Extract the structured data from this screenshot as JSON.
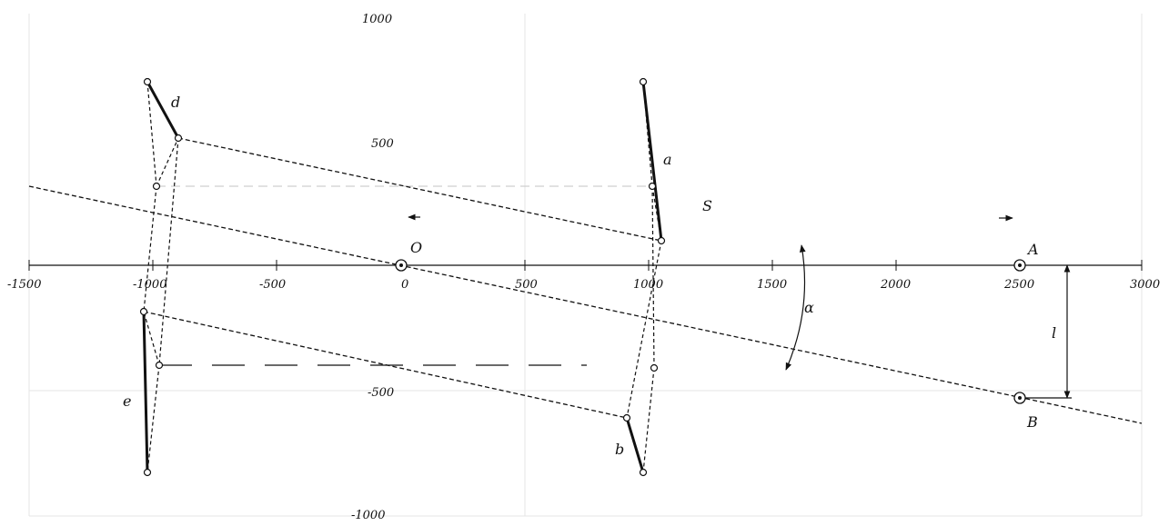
{
  "diagram": {
    "axis_ticks_x": [
      "-1500",
      "-1000",
      "-500",
      "0",
      "500",
      "1000",
      "1500",
      "2000",
      "2500",
      "3000"
    ],
    "axis_ticks_y": [
      "1000",
      "500",
      "-500",
      "-1000"
    ],
    "labels": {
      "origin": "O",
      "point_a": "A",
      "point_b": "B",
      "link_a": "a",
      "link_b": "b",
      "link_d": "d",
      "link_e": "e",
      "dist_s": "S",
      "dist_l": "l",
      "angle": "α"
    },
    "colors": {
      "ink": "#111111",
      "grid": "#e6e6e6",
      "dash_light": "#cfcfcf"
    }
  }
}
